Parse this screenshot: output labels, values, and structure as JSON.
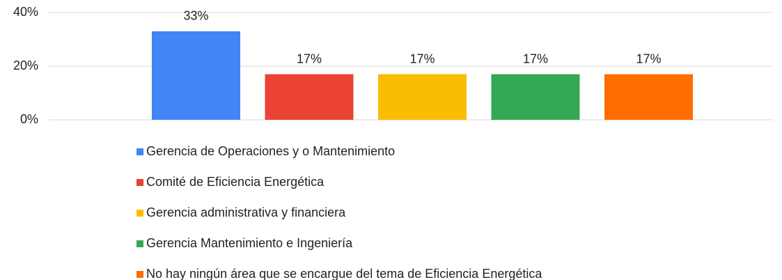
{
  "chart_data": {
    "type": "bar",
    "series": [
      {
        "name": "Gerencia de Operaciones y o Mantenimiento",
        "color": "#4285f4",
        "values": [
          33
        ],
        "value_labels": [
          "33%"
        ]
      },
      {
        "name": "Comité de Eficiencia Energética",
        "color": "#ea4335",
        "values": [
          17
        ],
        "value_labels": [
          "17%"
        ]
      },
      {
        "name": "Gerencia administrativa y financiera",
        "color": "#fbbc04",
        "values": [
          17
        ],
        "value_labels": [
          "17%"
        ]
      },
      {
        "name": "Gerencia Mantenimiento e Ingeniería",
        "color": "#34a853",
        "values": [
          17
        ],
        "value_labels": [
          "17%"
        ]
      },
      {
        "name": "No hay ningún área que se encargue del tema de Eficiencia Energética",
        "color": "#ff6d01",
        "values": [
          17
        ],
        "value_labels": [
          "17%"
        ]
      }
    ],
    "ylim": [
      0,
      40
    ],
    "yticks": [
      {
        "value": 0,
        "label": "0%"
      },
      {
        "value": 20,
        "label": "20%"
      },
      {
        "value": 40,
        "label": "40%"
      }
    ],
    "grid": true,
    "legend": "bottom"
  }
}
